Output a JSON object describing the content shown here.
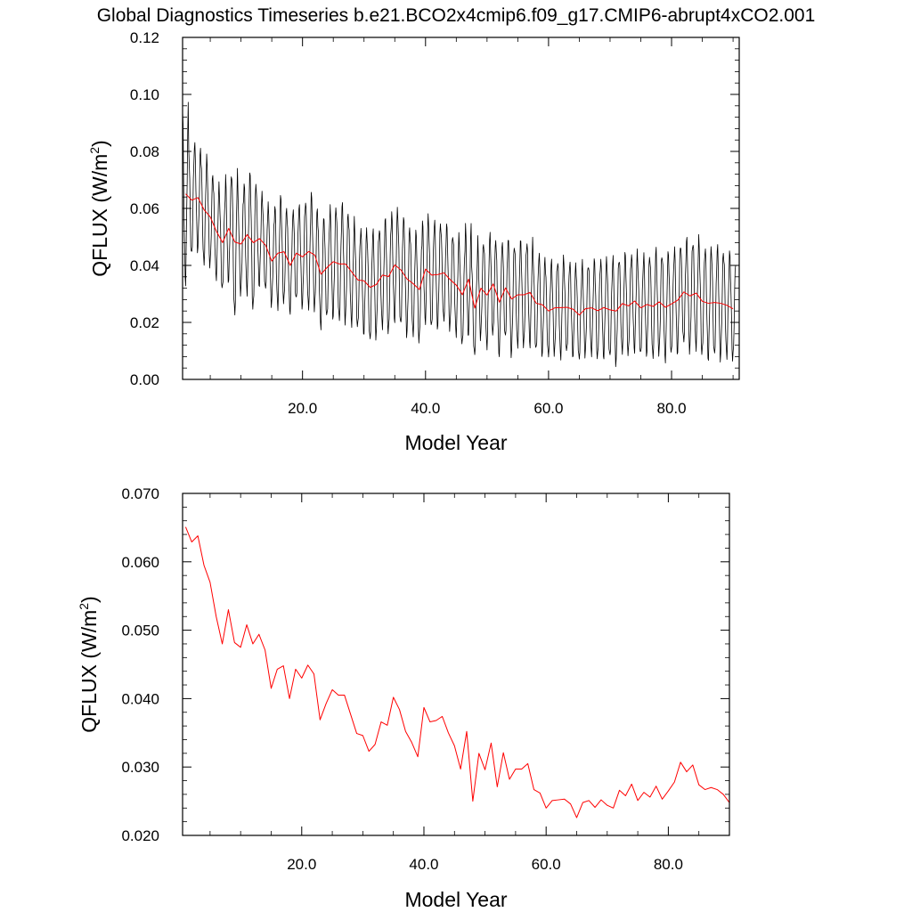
{
  "title": "Global Diagnostics Timeseries b.e21.BCO2x4cmip6.f09_g17.CMIP6-abrupt4xCO2.001",
  "chart_data": [
    {
      "type": "line",
      "xlabel": "Model Year",
      "ylabel_main": "QFLUX (W/m",
      "ylabel_sup": "2",
      "ylabel_close": ")",
      "xlim": [
        0.5,
        91.0
      ],
      "ylim": [
        0.0,
        0.12
      ],
      "xticks": [
        20,
        40,
        60,
        80
      ],
      "xtick_labels": [
        "20.0",
        "40.0",
        "60.0",
        "80.0"
      ],
      "yticks": [
        0.0,
        0.02,
        0.04,
        0.06,
        0.08,
        0.1,
        0.12
      ],
      "ytick_labels": [
        "0.00",
        "0.02",
        "0.04",
        "0.06",
        "0.08",
        "0.10",
        "0.12"
      ],
      "series": [
        {
          "kind": "monthly",
          "color": "#000000",
          "start_x": 0.5,
          "step": 0.0833333,
          "annual_mean_ref": "annual",
          "amplitude": [
            0.03,
            0.02,
            0.018,
            0.019,
            0.017,
            0.016,
            0.017,
            0.018,
            0.026,
            0.017,
            0.02,
            0.024,
            0.016,
            0.016,
            0.015,
            0.019,
            0.018,
            0.016,
            0.017,
            0.017,
            0.02,
            0.019,
            0.018,
            0.018,
            0.019,
            0.02,
            0.02,
            0.018,
            0.017,
            0.018,
            0.019,
            0.018,
            0.018,
            0.02,
            0.019,
            0.02,
            0.019,
            0.018,
            0.018,
            0.018,
            0.019,
            0.018,
            0.017,
            0.017,
            0.017,
            0.018,
            0.019,
            0.017,
            0.017,
            0.018,
            0.018,
            0.018,
            0.018,
            0.019,
            0.018,
            0.018,
            0.018,
            0.017,
            0.017,
            0.016,
            0.016,
            0.017,
            0.016,
            0.016,
            0.016,
            0.016,
            0.016,
            0.017,
            0.017,
            0.017,
            0.018,
            0.017,
            0.017,
            0.017,
            0.017,
            0.017,
            0.018,
            0.018,
            0.018,
            0.018,
            0.018,
            0.018,
            0.019,
            0.019,
            0.019,
            0.019,
            0.019,
            0.019,
            0.018,
            0.018
          ]
        },
        {
          "kind": "annual",
          "color": "#ff0000",
          "x_ref": "x",
          "y_ref": "annual"
        }
      ]
    },
    {
      "type": "line",
      "xlabel": "Model Year",
      "ylabel_main": "QFLUX (W/m",
      "ylabel_sup": "2",
      "ylabel_close": ")",
      "xlim": [
        0.5,
        90.0
      ],
      "ylim": [
        0.02,
        0.07
      ],
      "xticks": [
        20,
        40,
        60,
        80
      ],
      "xtick_labels": [
        "20.0",
        "40.0",
        "60.0",
        "80.0"
      ],
      "yticks": [
        0.02,
        0.03,
        0.04,
        0.05,
        0.06,
        0.07
      ],
      "ytick_labels": [
        "0.020",
        "0.030",
        "0.040",
        "0.050",
        "0.060",
        "0.070"
      ],
      "series": [
        {
          "kind": "annual",
          "color": "#ff0000",
          "x_ref": "x",
          "y_ref": "annual"
        }
      ]
    }
  ],
  "x": [
    1,
    2,
    3,
    4,
    5,
    6,
    7,
    8,
    9,
    10,
    11,
    12,
    13,
    14,
    15,
    16,
    17,
    18,
    19,
    20,
    21,
    22,
    23,
    24,
    25,
    26,
    27,
    28,
    29,
    30,
    31,
    32,
    33,
    34,
    35,
    36,
    37,
    38,
    39,
    40,
    41,
    42,
    43,
    44,
    45,
    46,
    47,
    48,
    49,
    50,
    51,
    52,
    53,
    54,
    55,
    56,
    57,
    58,
    59,
    60,
    61,
    62,
    63,
    64,
    65,
    66,
    67,
    68,
    69,
    70,
    71,
    72,
    73,
    74,
    75,
    76,
    77,
    78,
    79,
    80,
    81,
    82,
    83,
    84,
    85,
    86,
    87,
    88,
    89,
    90
  ],
  "annual": [
    0.0651,
    0.0629,
    0.0638,
    0.0595,
    0.057,
    0.052,
    0.048,
    0.053,
    0.0482,
    0.0475,
    0.0508,
    0.048,
    0.0494,
    0.0471,
    0.0415,
    0.0443,
    0.0448,
    0.04,
    0.0443,
    0.043,
    0.0449,
    0.0436,
    0.0369,
    0.0393,
    0.0413,
    0.0405,
    0.0405,
    0.0377,
    0.0349,
    0.0346,
    0.0323,
    0.0333,
    0.0366,
    0.0361,
    0.0402,
    0.0384,
    0.0352,
    0.0336,
    0.0315,
    0.0387,
    0.0366,
    0.0368,
    0.0374,
    0.035,
    0.0331,
    0.0297,
    0.0352,
    0.025,
    0.032,
    0.0296,
    0.0335,
    0.0271,
    0.0321,
    0.0282,
    0.0297,
    0.0297,
    0.0305,
    0.0267,
    0.0262,
    0.024,
    0.0251,
    0.0252,
    0.0253,
    0.0246,
    0.0226,
    0.0248,
    0.0251,
    0.0241,
    0.0252,
    0.0244,
    0.024,
    0.0266,
    0.0258,
    0.0275,
    0.0251,
    0.0263,
    0.0256,
    0.0272,
    0.0253,
    0.0265,
    0.0278,
    0.0307,
    0.0293,
    0.0303,
    0.0274,
    0.0267,
    0.027,
    0.0267,
    0.026,
    0.0248
  ]
}
